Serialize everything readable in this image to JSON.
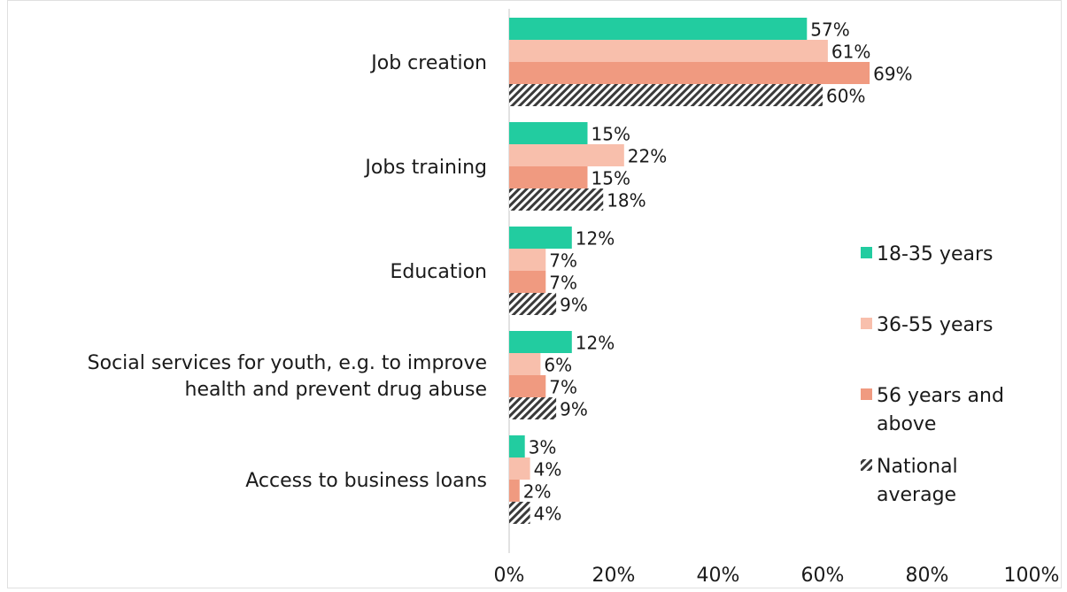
{
  "colors": {
    "background": "#ffffff",
    "axis": "#d9d9d9",
    "text": "#1a1a1a",
    "series": [
      "#22cca0",
      "#f8bfac",
      "#f09a80",
      "#3a3a3a"
    ]
  },
  "chart_data": {
    "type": "bar",
    "orientation": "horizontal",
    "title": "",
    "xlabel": "",
    "ylabel": "",
    "xlim": [
      0,
      100
    ],
    "x_ticks": [
      "0%",
      "20%",
      "40%",
      "60%",
      "80%",
      "100%"
    ],
    "value_format": "percent",
    "grid": false,
    "legend_position": "right",
    "categories": [
      [
        "Job creation"
      ],
      [
        "Jobs training"
      ],
      [
        "Education"
      ],
      [
        "Social services for youth, e.g. to improve",
        "health and prevent drug abuse"
      ],
      [
        "Access to business loans"
      ]
    ],
    "series": [
      {
        "name": "18-35 years",
        "legend_lines": [
          "18-35 years"
        ],
        "pattern": "solid",
        "values": [
          57,
          15,
          12,
          12,
          3
        ]
      },
      {
        "name": "36-55 years",
        "legend_lines": [
          "36-55 years"
        ],
        "pattern": "solid",
        "values": [
          61,
          22,
          7,
          6,
          4
        ]
      },
      {
        "name": "56 years and above",
        "legend_lines": [
          "56 years and",
          "above"
        ],
        "pattern": "solid",
        "values": [
          69,
          15,
          7,
          7,
          2
        ]
      },
      {
        "name": "National average",
        "legend_lines": [
          "National",
          "average"
        ],
        "pattern": "hatched",
        "values": [
          60,
          18,
          9,
          9,
          4
        ]
      }
    ]
  }
}
